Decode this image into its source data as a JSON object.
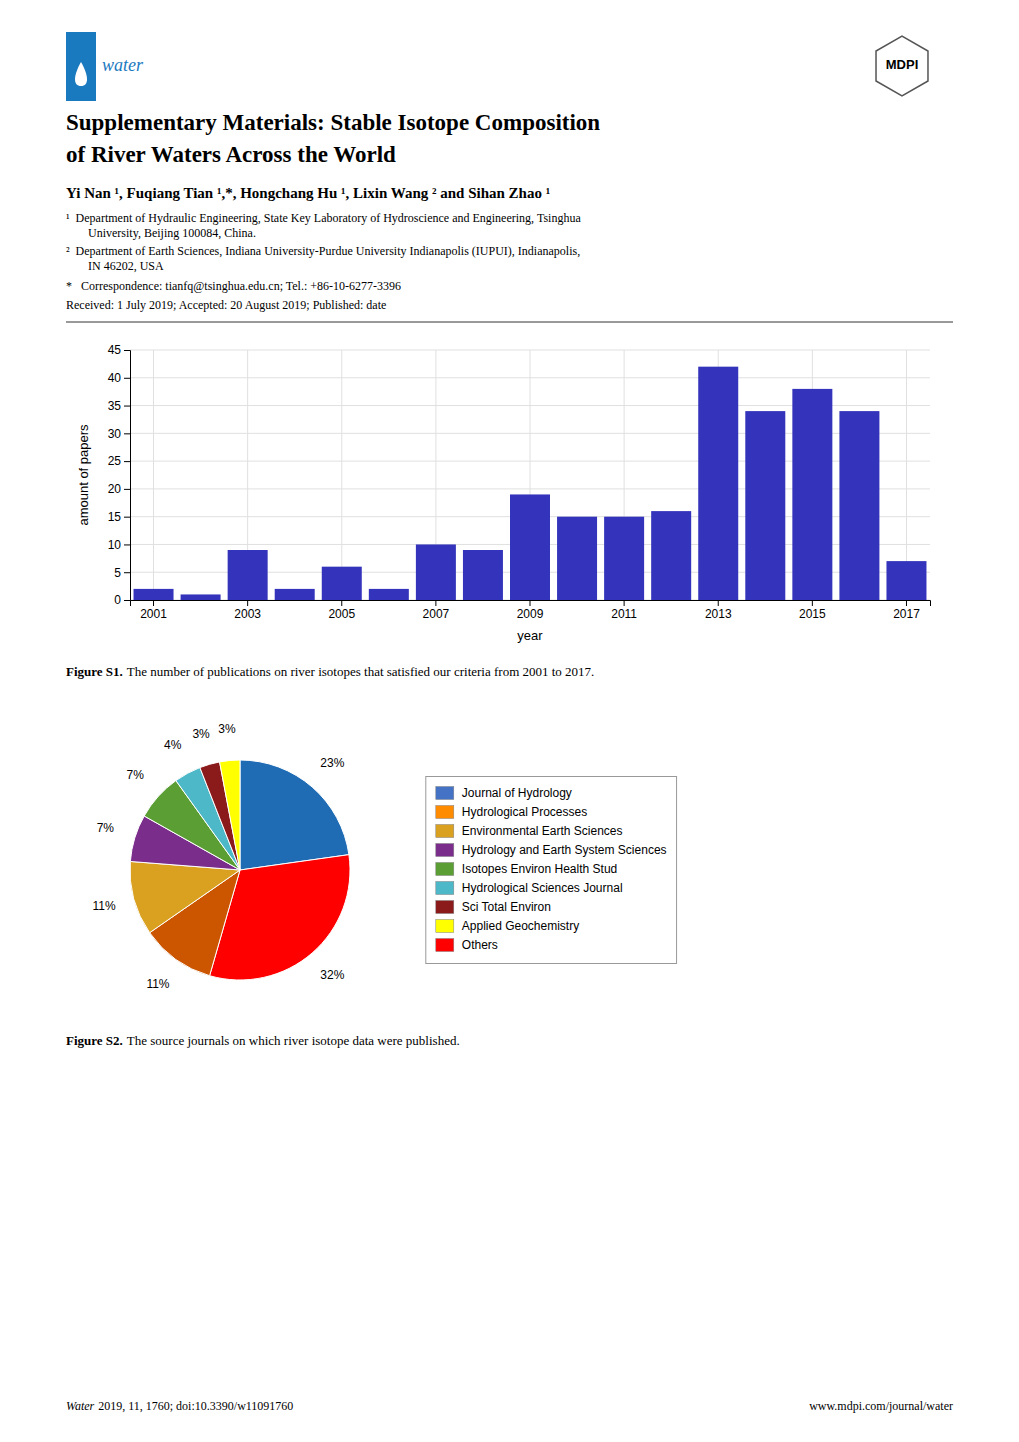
{
  "chart_data": [
    {
      "type": "bar",
      "categories": [
        "2001",
        null,
        "2003",
        null,
        "2005",
        null,
        "2007",
        null,
        "2009",
        null,
        "2011",
        null,
        "2013",
        null,
        "2015",
        null,
        "2017"
      ],
      "values": [
        2,
        1,
        9,
        2,
        6,
        2,
        10,
        9,
        19,
        15,
        15,
        16,
        42,
        34,
        38,
        34,
        7
      ],
      "color": "#3333BB",
      "xlabel": "year",
      "ylabel": "amount of papers",
      "ylim": [
        0,
        45
      ],
      "yticks": [
        0,
        5,
        10,
        15,
        20,
        25,
        30,
        35,
        40,
        45
      ],
      "grid": true,
      "caption_label": "Figure S1.",
      "caption": "The number of publications on river isotopes that satisfied our criteria from 2001 to 2017."
    },
    {
      "type": "pie",
      "values": [
        23,
        32,
        11,
        11,
        7,
        7,
        4,
        3,
        3
      ],
      "value_labels": [
        "23%",
        "32%",
        "11%",
        "11%",
        "7%",
        "7%",
        "4%",
        "3%",
        "3%"
      ],
      "colors": [
        "#1F6CB5",
        "#FF0000",
        "#CC5500",
        "#DAA020",
        "#7B2D8B",
        "#5A9E34",
        "#4DB8C8",
        "#8B1A1A",
        "#FFFF00"
      ],
      "data_labels": true,
      "legend": "right",
      "legend_entries": [
        {
          "name": "Journal of Hydrology",
          "color": "#4472C4"
        },
        {
          "name": "Hydrological Processes",
          "color": "#FF8C00"
        },
        {
          "name": "Environmental Earth Sciences",
          "color": "#DAA020"
        },
        {
          "name": "Hydrology and Earth System Sciences",
          "color": "#7B2D8B"
        },
        {
          "name": "Isotopes Environ Health Stud",
          "color": "#5A9E34"
        },
        {
          "name": "Hydrological Sciences Journal",
          "color": "#4DB8C8"
        },
        {
          "name": "Sci Total Environ",
          "color": "#8B1A1A"
        },
        {
          "name": "Applied Geochemistry",
          "color": "#FFFF00"
        },
        {
          "name": "Others",
          "color": "#FF0000"
        }
      ],
      "caption_label": "Figure S2.",
      "caption": "The source journals on which river isotope data were published."
    }
  ],
  "page": {
    "background": "#ffffff",
    "logo_color": "#1a7abf",
    "logo_left": "water",
    "logo_right": "MDPI",
    "title_lines": [
      "Supplementary Materials: Stable Isotope Composition",
      "of River Waters Across the World"
    ],
    "authors": "Yi Nan ¹, Fuqiang Tian ¹,*, Hongchang Hu ¹, Lixin Wang ² and Sihan Zhao ¹",
    "affiliations": [
      [
        "¹  Department of Hydraulic Engineering, State Key Laboratory of Hydroscience and Engineering, Tsinghua",
        "University, Beijing 100084, China."
      ],
      [
        "²  Department of Earth Sciences, Indiana University-Purdue University Indianapolis (IUPUI), Indianapolis,",
        "IN 46202, USA"
      ]
    ],
    "correspondence": "*   Correspondence: tianfq@tsinghua.edu.cn; Tel.: +86-10-6277-3396",
    "received": "Received: 1 July 2019; Accepted: 20 August 2019; Published: date",
    "footer_left_italic": "Water",
    "footer_left": "2019, 11, 1760; doi:10.3390/w11091760",
    "footer_right": "www.mdpi.com/journal/water"
  }
}
